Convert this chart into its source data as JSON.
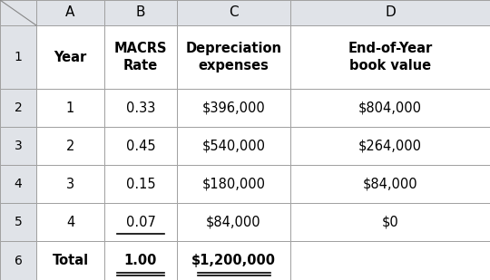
{
  "col_headers": [
    "A",
    "B",
    "C",
    "D"
  ],
  "header_row": [
    "Year",
    "MACRS\nRate",
    "Depreciation\nexpenses",
    "End-of-Year\nbook value"
  ],
  "data_rows": [
    [
      "1",
      "0.33",
      "$396,000",
      "$804,000"
    ],
    [
      "2",
      "0.45",
      "$540,000",
      "$264,000"
    ],
    [
      "3",
      "0.15",
      "$180,000",
      "$84,000"
    ],
    [
      "4",
      "0.07",
      "$84,000",
      "$0"
    ],
    [
      "Total",
      "1.00",
      "$1,200,000",
      ""
    ]
  ],
  "row_labels": [
    "1",
    "2",
    "3",
    "4",
    "5",
    "6"
  ],
  "header_bg": "#e0e3e8",
  "row_num_bg": "#e0e3e8",
  "cell_bg": "#ffffff",
  "grid_color": "#a0a0a0",
  "text_color": "#000000",
  "col_letter_fontsize": 11,
  "header_fontsize": 10.5,
  "data_fontsize": 10.5,
  "row_num_fontsize": 10,
  "figwidth": 5.4,
  "figheight": 3.09,
  "dpi": 100
}
